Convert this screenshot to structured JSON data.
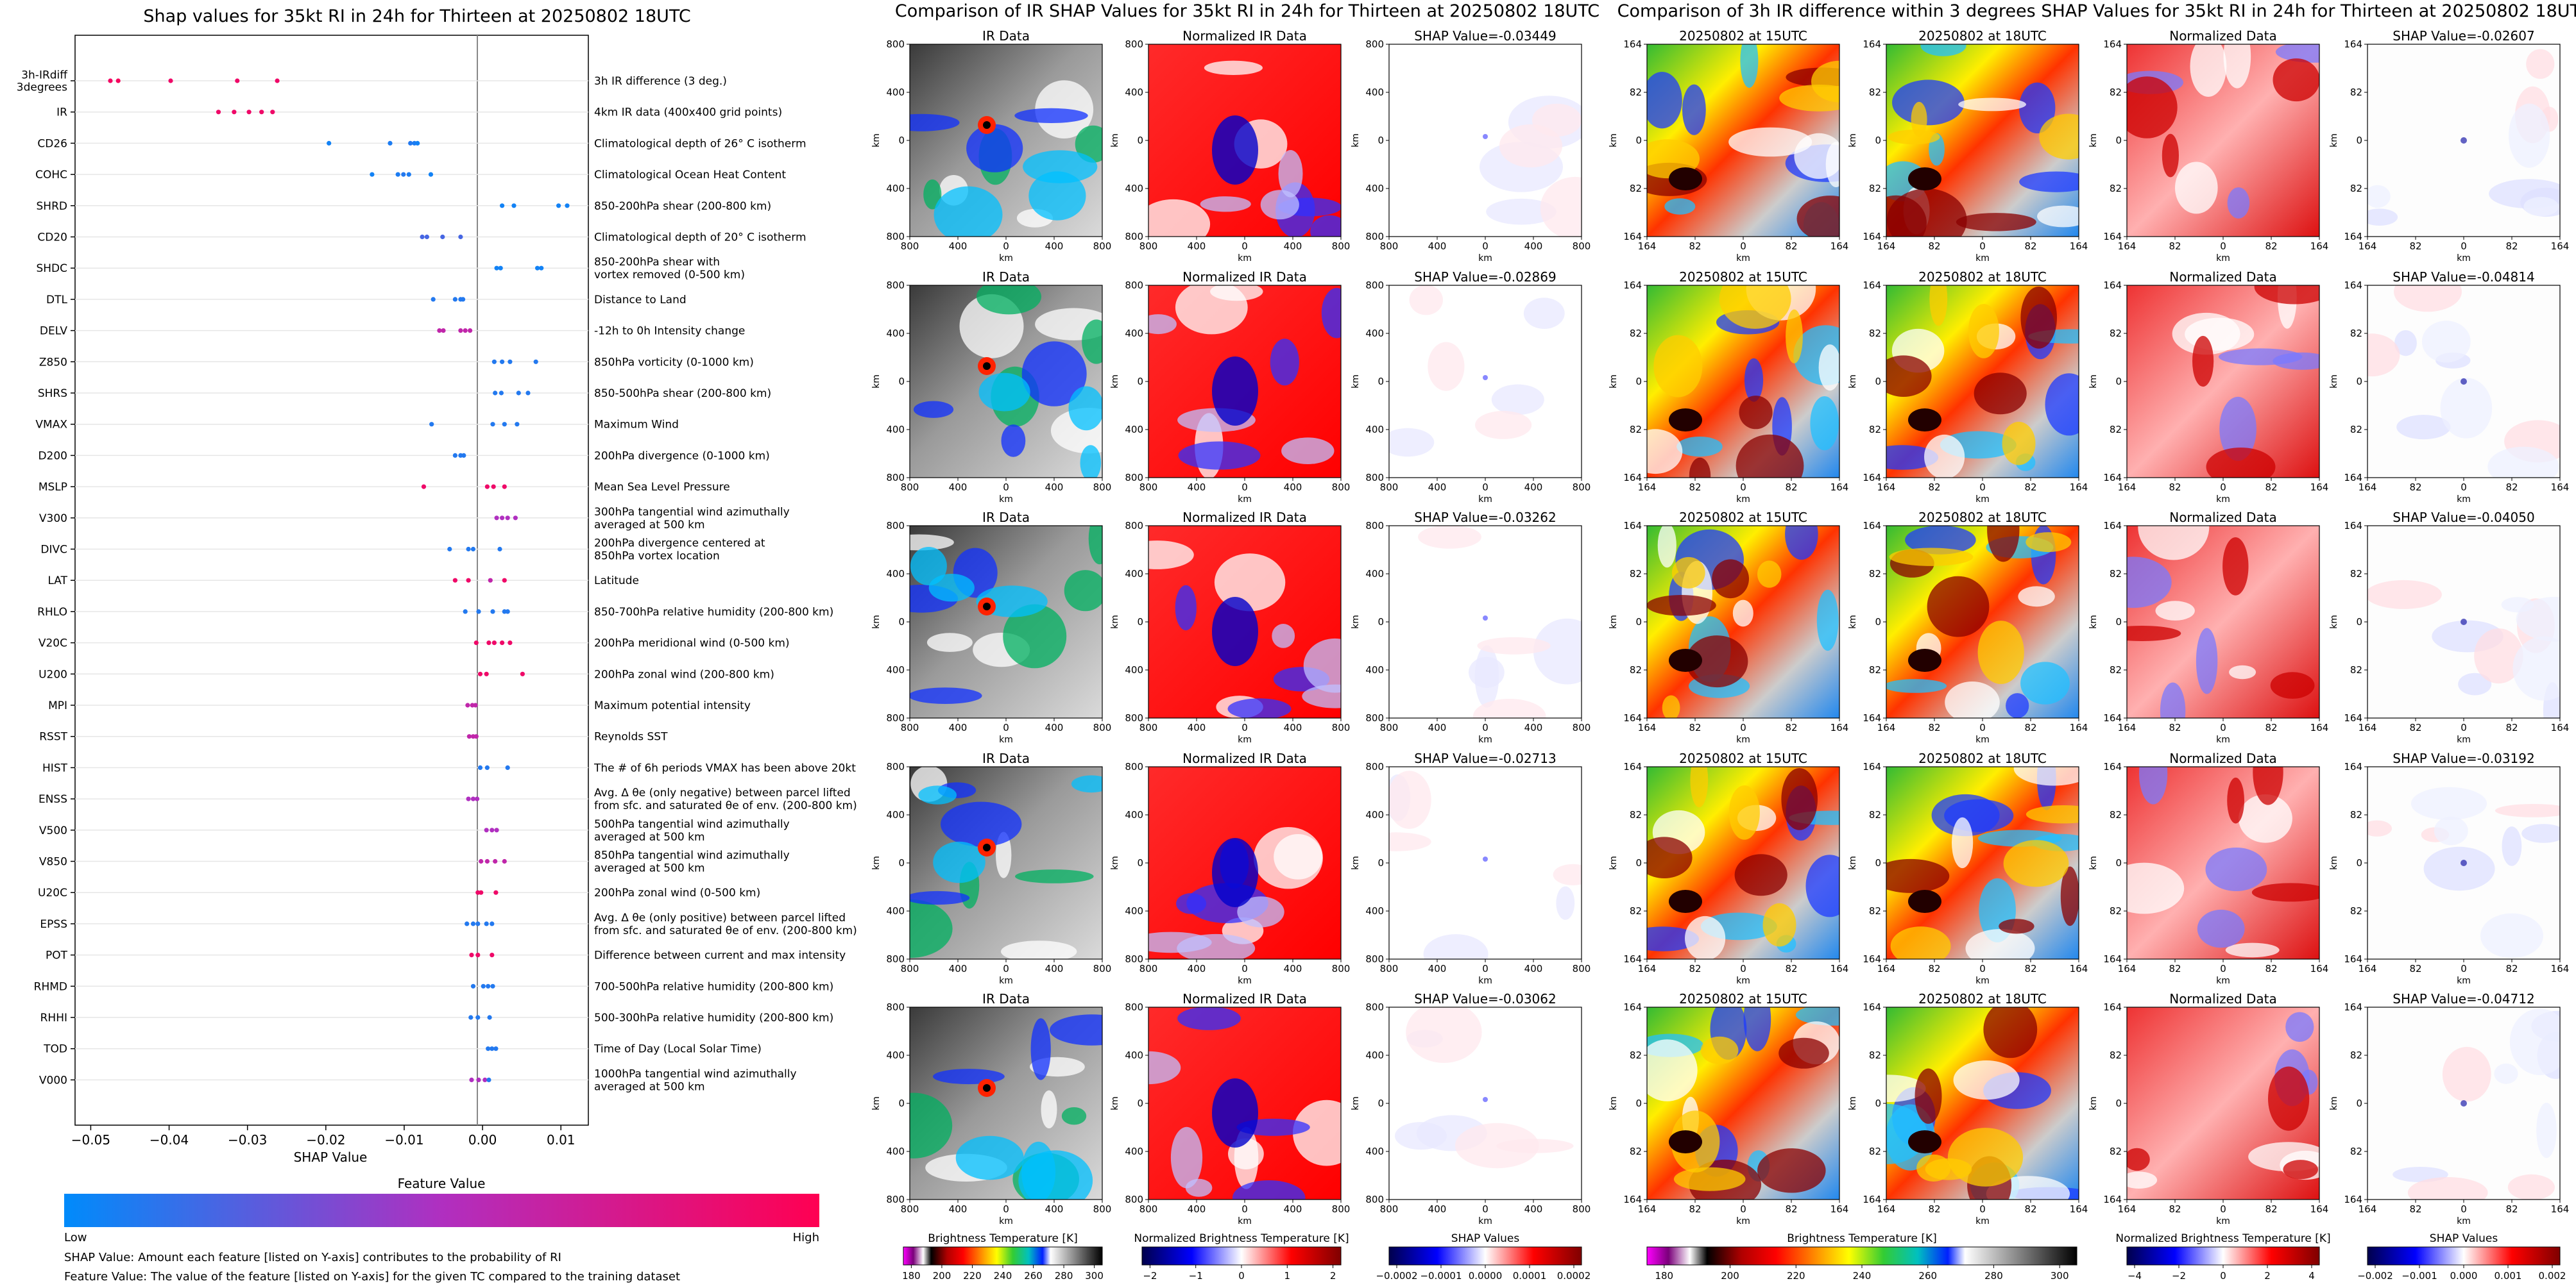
{
  "left_panel": {
    "title": "Shap values for 35kt RI in 24h for Thirteen at 20250802 18UTC",
    "xlabel": "SHAP Value",
    "colorbar_title": "Feature Value",
    "low_label": "Low",
    "high_label": "High",
    "footnote1": "SHAP Value: Amount each feature [listed on Y-axis] contributes to the probability of RI",
    "footnote2": "Feature Value: The value of the feature [listed on Y-axis] for the given TC compared to the training dataset"
  },
  "middle_panel": {
    "title": "Comparison of IR SHAP Values for 35kt RI in 24h for Thirteen at 20250802 18UTC",
    "col_titles": [
      "IR Data",
      "Normalized IR Data"
    ],
    "shap_prefix": "SHAP Value=",
    "axis_unit": "km",
    "ticks": [
      "800",
      "400",
      "0",
      "400",
      "800"
    ],
    "colorbars": [
      {
        "label": "Brightness Temperature [K]",
        "ticks": [
          "180",
          "200",
          "220",
          "240",
          "260",
          "280",
          "300"
        ]
      },
      {
        "label": "Normalized Brightness Temperature [K]",
        "ticks": [
          "−2",
          "−1",
          "0",
          "1",
          "2"
        ]
      },
      {
        "label": "SHAP Values",
        "ticks": [
          "−0.0002",
          "−0.0001",
          "0.0000",
          "0.0001",
          "0.0002"
        ]
      }
    ]
  },
  "right_panel": {
    "title": "Comparison of 3h IR difference within 3 degrees SHAP Values for 35kt RI in 24h for Thirteen at 20250802 18UTC",
    "col_titles": [
      "20250802 at 15UTC",
      "20250802 at 18UTC",
      "Normalized Data"
    ],
    "shap_prefix": "SHAP Value=",
    "axis_unit": "km",
    "ticks": [
      "164",
      "82",
      "0",
      "82",
      "164"
    ],
    "colorbars": [
      {
        "label": "Brightness Temperature [K]",
        "ticks": [
          "180",
          "200",
          "220",
          "240",
          "260",
          "280",
          "300"
        ]
      },
      {
        "label": "Normalized Brightness Temperature [K]",
        "ticks": [
          "−4",
          "−2",
          "0",
          "2",
          "4"
        ]
      },
      {
        "label": "SHAP Values",
        "ticks": [
          "−0.002",
          "−0.001",
          "0.000",
          "0.001",
          "0.002"
        ]
      }
    ]
  },
  "chart_data": [
    {
      "type": "scatter",
      "title": "Shap values for 35kt RI in 24h for Thirteen at 20250802 18UTC",
      "xlabel": "SHAP Value",
      "xlim": [
        -0.052,
        0.0135
      ],
      "xticks": [
        -0.05,
        -0.04,
        -0.03,
        -0.02,
        -0.01,
        0.0,
        0.01
      ],
      "xtick_labels": [
        "−0.05",
        "−0.04",
        "−0.03",
        "−0.02",
        "−0.01",
        "0.00",
        "0.01"
      ],
      "color_scale": {
        "low": "#008bfb",
        "high": "#ff0052",
        "mid": "#b02fc0",
        "low_label": "Low",
        "high_label": "High"
      },
      "features": [
        {
          "name": "3h-IRdiff\n3degrees",
          "desc": "3h IR difference (3 deg.)",
          "points": [
            [
              -0.0475,
              0.92
            ],
            [
              -0.0465,
              0.95
            ],
            [
              -0.0398,
              0.9
            ],
            [
              -0.0313,
              0.9
            ],
            [
              -0.0262,
              0.9
            ]
          ]
        },
        {
          "name": "IR",
          "desc": "4km IR data (400x400 grid points)",
          "points": [
            [
              -0.0337,
              0.9
            ],
            [
              -0.0317,
              0.9
            ],
            [
              -0.0298,
              0.9
            ],
            [
              -0.0282,
              0.9
            ],
            [
              -0.0268,
              0.9
            ]
          ]
        },
        {
          "name": "CD26",
          "desc": "Climatological depth of 26° C isotherm",
          "points": [
            [
              -0.0196,
              0.05
            ],
            [
              -0.0118,
              0.08
            ],
            [
              -0.0092,
              0.1
            ],
            [
              -0.0087,
              0.08
            ],
            [
              -0.0083,
              0.05
            ]
          ]
        },
        {
          "name": "COHC",
          "desc": "Climatological Ocean Heat Content",
          "points": [
            [
              -0.0141,
              0.05
            ],
            [
              -0.0108,
              0.08
            ],
            [
              -0.0101,
              0.1
            ],
            [
              -0.0094,
              0.08
            ],
            [
              -0.0066,
              0.05
            ]
          ]
        },
        {
          "name": "SHRD",
          "desc": "850-200hPa shear (200-800 km)",
          "points": [
            [
              0.0025,
              0.05
            ],
            [
              0.004,
              0.05
            ],
            [
              0.0097,
              0.05
            ],
            [
              0.0108,
              0.05
            ]
          ]
        },
        {
          "name": "CD20",
          "desc": "Climatological depth of 20° C isotherm",
          "points": [
            [
              -0.0077,
              0.2
            ],
            [
              -0.0071,
              0.2
            ],
            [
              -0.0051,
              0.2
            ],
            [
              -0.0028,
              0.2
            ]
          ]
        },
        {
          "name": "SHDC",
          "desc": "850-200hPa shear with\nvortex removed (0-500 km)",
          "points": [
            [
              0.0018,
              0.05
            ],
            [
              0.0023,
              0.05
            ],
            [
              0.007,
              0.05
            ],
            [
              0.0075,
              0.05
            ]
          ]
        },
        {
          "name": "DTL",
          "desc": "Distance to Land",
          "points": [
            [
              -0.0063,
              0.1
            ],
            [
              -0.0035,
              0.1
            ],
            [
              -0.0028,
              0.1
            ],
            [
              -0.0025,
              0.1
            ]
          ]
        },
        {
          "name": "DELV",
          "desc": "-12h to 0h Intensity change",
          "points": [
            [
              -0.0055,
              0.6
            ],
            [
              -0.005,
              0.6
            ],
            [
              -0.0028,
              0.6
            ],
            [
              -0.0022,
              0.6
            ],
            [
              -0.0016,
              0.6
            ]
          ]
        },
        {
          "name": "Z850",
          "desc": "850hPa vorticity (0-1000 km)",
          "points": [
            [
              0.0015,
              0.1
            ],
            [
              0.0025,
              0.1
            ],
            [
              0.0035,
              0.1
            ],
            [
              0.0068,
              0.1
            ]
          ]
        },
        {
          "name": "SHRS",
          "desc": "850-500hPa shear (200-800 km)",
          "points": [
            [
              0.0016,
              0.1
            ],
            [
              0.0024,
              0.1
            ],
            [
              0.0046,
              0.1
            ],
            [
              0.0058,
              0.1
            ]
          ]
        },
        {
          "name": "VMAX",
          "desc": "Maximum Wind",
          "points": [
            [
              -0.0065,
              0.1
            ],
            [
              0.0013,
              0.1
            ],
            [
              0.0028,
              0.1
            ],
            [
              0.0044,
              0.1
            ]
          ]
        },
        {
          "name": "D200",
          "desc": "200hPa divergence (0-1000 km)",
          "points": [
            [
              -0.0035,
              0.1
            ],
            [
              -0.0028,
              0.1
            ],
            [
              -0.0024,
              0.1
            ]
          ]
        },
        {
          "name": "MSLP",
          "desc": "Mean Sea Level Pressure",
          "points": [
            [
              -0.0075,
              0.9
            ],
            [
              0.0006,
              0.9
            ],
            [
              0.0014,
              0.9
            ],
            [
              0.0028,
              0.9
            ]
          ]
        },
        {
          "name": "V300",
          "desc": "300hPa tangential wind azimuthally\naveraged at 500 km",
          "points": [
            [
              0.0018,
              0.5
            ],
            [
              0.0025,
              0.5
            ],
            [
              0.0032,
              0.5
            ],
            [
              0.0042,
              0.5
            ]
          ]
        },
        {
          "name": "DIVC",
          "desc": "200hPa divergence centered at\n850hPa vortex location",
          "points": [
            [
              -0.0042,
              0.1
            ],
            [
              -0.0018,
              0.1
            ],
            [
              -0.0012,
              0.1
            ],
            [
              0.0022,
              0.1
            ]
          ]
        },
        {
          "name": "LAT",
          "desc": "Latitude",
          "points": [
            [
              -0.0035,
              0.9
            ],
            [
              -0.0018,
              0.9
            ],
            [
              0.001,
              0.6
            ],
            [
              0.0028,
              0.9
            ]
          ]
        },
        {
          "name": "RHLO",
          "desc": "850-700hPa relative humidity (200-800 km)",
          "points": [
            [
              -0.0022,
              0.1
            ],
            [
              -0.0005,
              0.1
            ],
            [
              0.0013,
              0.1
            ],
            [
              0.0028,
              0.1
            ],
            [
              0.0032,
              0.1
            ]
          ]
        },
        {
          "name": "V20C",
          "desc": "200hPa meridional wind (0-500 km)",
          "points": [
            [
              -0.0008,
              0.9
            ],
            [
              0.0008,
              0.9
            ],
            [
              0.0015,
              0.9
            ],
            [
              0.0025,
              0.9
            ],
            [
              0.0035,
              0.9
            ]
          ]
        },
        {
          "name": "U200",
          "desc": "200hPa zonal wind (200-800 km)",
          "points": [
            [
              -0.0003,
              0.9
            ],
            [
              0.0005,
              0.9
            ],
            [
              0.0051,
              0.9
            ]
          ]
        },
        {
          "name": "MPI",
          "desc": "Maximum potential intensity",
          "points": [
            [
              -0.0019,
              0.6
            ],
            [
              -0.0013,
              0.6
            ],
            [
              -0.0009,
              0.6
            ]
          ]
        },
        {
          "name": "RSST",
          "desc": "Reynolds SST",
          "points": [
            [
              -0.0017,
              0.6
            ],
            [
              -0.0012,
              0.6
            ],
            [
              -0.0008,
              0.6
            ]
          ]
        },
        {
          "name": "HIST",
          "desc": "The # of 6h periods VMAX has been above 20kt",
          "points": [
            [
              -0.0003,
              0.1
            ],
            [
              0.0006,
              0.1
            ],
            [
              0.0032,
              0.1
            ]
          ]
        },
        {
          "name": "ENSS",
          "desc": "Avg. Δ θe (only negative) between parcel lifted\nfrom sfc. and saturated θe of env. (200-800 km)",
          "points": [
            [
              -0.0018,
              0.5
            ],
            [
              -0.0012,
              0.5
            ],
            [
              -0.0007,
              0.5
            ]
          ]
        },
        {
          "name": "V500",
          "desc": "500hPa tangential wind azimuthally\naveraged at 500 km",
          "points": [
            [
              0.0005,
              0.5
            ],
            [
              0.0012,
              0.5
            ],
            [
              0.0018,
              0.5
            ]
          ]
        },
        {
          "name": "V850",
          "desc": "850hPa tangential wind azimuthally\naveraged at 500 km",
          "points": [
            [
              -0.0002,
              0.6
            ],
            [
              0.0006,
              0.6
            ],
            [
              0.0016,
              0.6
            ],
            [
              0.0028,
              0.6
            ]
          ]
        },
        {
          "name": "U20C",
          "desc": "200hPa zonal wind (0-500 km)",
          "points": [
            [
              -0.0006,
              0.9
            ],
            [
              -0.0002,
              0.9
            ],
            [
              0.0017,
              0.9
            ]
          ]
        },
        {
          "name": "EPSS",
          "desc": "Avg. Δ θe (only positive) between parcel lifted\nfrom sfc. and saturated θe of env. (200-800 km)",
          "points": [
            [
              -0.002,
              0.1
            ],
            [
              -0.0012,
              0.1
            ],
            [
              -0.0006,
              0.1
            ],
            [
              0.0005,
              0.1
            ],
            [
              0.0012,
              0.1
            ]
          ]
        },
        {
          "name": "POT",
          "desc": "Difference between current and max intensity",
          "points": [
            [
              -0.0014,
              0.9
            ],
            [
              -0.0006,
              0.9
            ],
            [
              0.0012,
              0.9
            ]
          ]
        },
        {
          "name": "RHMD",
          "desc": "700-500hPa relative humidity (200-800 km)",
          "points": [
            [
              -0.0012,
              0.1
            ],
            [
              0.0001,
              0.1
            ],
            [
              0.0007,
              0.1
            ],
            [
              0.0013,
              0.1
            ]
          ]
        },
        {
          "name": "RHHI",
          "desc": "500-300hPa relative humidity (200-800 km)",
          "points": [
            [
              -0.0015,
              0.1
            ],
            [
              -0.0006,
              0.1
            ],
            [
              0.0009,
              0.1
            ]
          ]
        },
        {
          "name": "TOD",
          "desc": "Time of Day (Local Solar Time)",
          "points": [
            [
              0.0007,
              0.1
            ],
            [
              0.0012,
              0.1
            ],
            [
              0.0017,
              0.1
            ]
          ]
        },
        {
          "name": "V000",
          "desc": "1000hPa tangential wind azimuthally\naveraged at 500 km",
          "points": [
            [
              -0.0014,
              0.5
            ],
            [
              -0.0005,
              0.5
            ],
            [
              0.0003,
              0.5
            ],
            [
              0.0008,
              0.1
            ]
          ]
        }
      ]
    },
    {
      "type": "heatmap",
      "title": "Comparison of IR SHAP Values for 35kt RI in 24h for Thirteen at 20250802 18UTC",
      "rows": [
        {
          "shap_value": "-0.03449"
        },
        {
          "shap_value": "-0.02869"
        },
        {
          "shap_value": "-0.03262"
        },
        {
          "shap_value": "-0.02713"
        },
        {
          "shap_value": "-0.03062"
        }
      ],
      "xlabel": "km",
      "ylabel": "km",
      "xlim": [
        -800,
        800
      ],
      "ylim": [
        -800,
        800
      ]
    },
    {
      "type": "heatmap",
      "title": "Comparison of 3h IR difference within 3 degrees SHAP Values for 35kt RI in 24h for Thirteen at 20250802 18UTC",
      "rows": [
        {
          "shap_value": "-0.02607"
        },
        {
          "shap_value": "-0.04814"
        },
        {
          "shap_value": "-0.04050"
        },
        {
          "shap_value": "-0.03192"
        },
        {
          "shap_value": "-0.04712"
        }
      ],
      "xlabel": "km",
      "ylabel": "km",
      "xlim": [
        -164,
        164
      ],
      "ylim": [
        -164,
        164
      ]
    }
  ]
}
